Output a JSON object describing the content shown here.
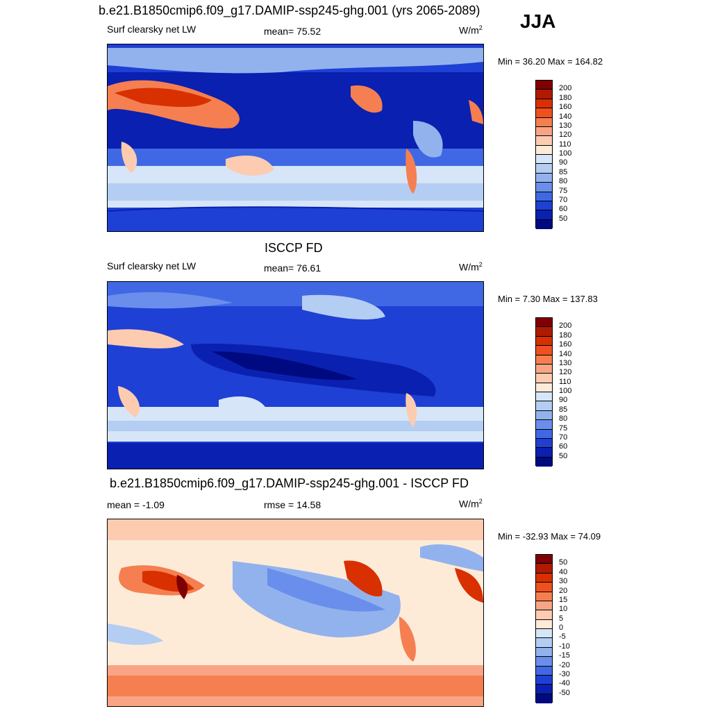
{
  "season": "JJA",
  "panels": [
    {
      "title": "b.e21.B1850cmip6.f09_g17.DAMIP-ssp245-ghg.001 (yrs 2065-2089)",
      "left_label": "Surf clearsky net LW",
      "center_label": "mean=  75.52",
      "units": "W/m",
      "units_sup": "2",
      "minmax": "Min =  36.20 Max = 164.82",
      "kind": "model"
    },
    {
      "title": "ISCCP FD",
      "left_label": "Surf clearsky net LW",
      "center_label": "mean=  76.61",
      "units": "W/m",
      "units_sup": "2",
      "minmax": "Min =   7.30 Max = 137.83",
      "kind": "obs"
    },
    {
      "title": "b.e21.B1850cmip6.f09_g17.DAMIP-ssp245-ghg.001 - ISCCP FD",
      "left_label": "mean =  -1.09",
      "center_label": "rmse =  14.58",
      "units": "W/m",
      "units_sup": "2",
      "minmax": "Min = -32.93 Max =  74.09",
      "kind": "diff"
    }
  ],
  "colorbar_abs": {
    "labels": [
      "200",
      "180",
      "160",
      "140",
      "130",
      "120",
      "110",
      "100",
      "90",
      "85",
      "80",
      "75",
      "70",
      "60",
      "50"
    ],
    "colors": [
      "#7f0000",
      "#b01a00",
      "#d83000",
      "#ee5020",
      "#f57f50",
      "#f9a585",
      "#fdcbb0",
      "#fdebd8",
      "#d6e6f8",
      "#b4cdf2",
      "#92b2ee",
      "#6a8eeb",
      "#4068e4",
      "#1e40d4",
      "#0a20b0",
      "#000a80"
    ]
  },
  "colorbar_diff": {
    "labels": [
      "50",
      "40",
      "30",
      "20",
      "15",
      "10",
      "5",
      "0",
      "-5",
      "-10",
      "-15",
      "-20",
      "-30",
      "-40",
      "-50"
    ],
    "colors": [
      "#7f0000",
      "#b01a00",
      "#d83000",
      "#ee5020",
      "#f57f50",
      "#f9a585",
      "#fdcbb0",
      "#fdebd8",
      "#d6e6f8",
      "#b4cdf2",
      "#92b2ee",
      "#6a8eeb",
      "#4068e4",
      "#1e40d4",
      "#0a20b0",
      "#000a80"
    ]
  }
}
